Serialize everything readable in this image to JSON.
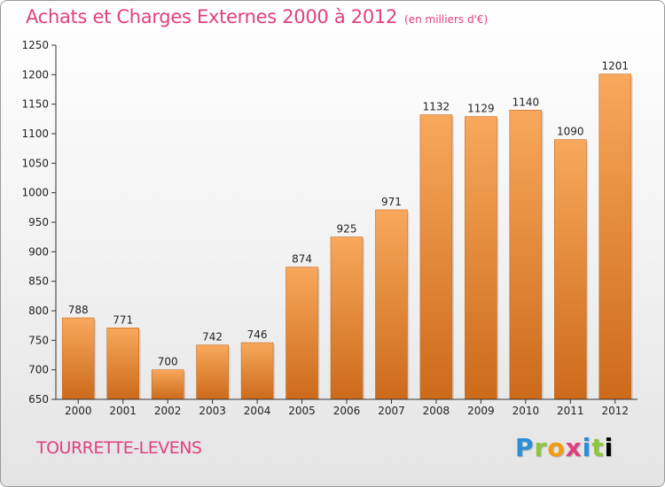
{
  "title": "Achats et Charges Externes 2000 à 2012",
  "unit_label": "(en milliers d'€)",
  "commune": "TOURRETTE-LEVENS",
  "logo_text": "Proxiti",
  "colors": {
    "title": "#e0407f",
    "bar_top": "#f8a85c",
    "bar_bottom": "#cc6a1a",
    "axis": "#333333"
  },
  "chart_data": {
    "type": "bar",
    "categories": [
      "2000",
      "2001",
      "2002",
      "2003",
      "2004",
      "2005",
      "2006",
      "2007",
      "2008",
      "2009",
      "2010",
      "2011",
      "2012"
    ],
    "values": [
      788,
      771,
      700,
      742,
      746,
      874,
      925,
      971,
      1132,
      1129,
      1140,
      1090,
      1201
    ],
    "ylim": [
      650,
      1250
    ],
    "yticks": [
      650,
      700,
      750,
      800,
      850,
      900,
      950,
      1000,
      1050,
      1100,
      1150,
      1200,
      1250
    ],
    "grid": false,
    "data_labels": true
  }
}
